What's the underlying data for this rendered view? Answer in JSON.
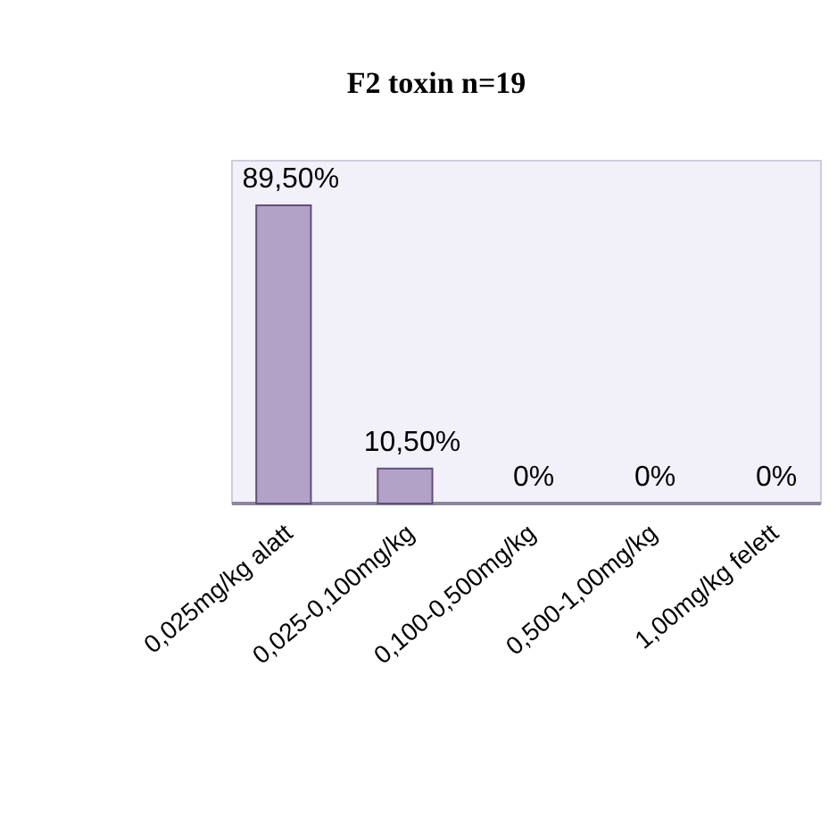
{
  "chart_data": {
    "type": "bar",
    "title": "F2 toxin n=19",
    "categories": [
      "0,025mg/kg alatt",
      "0,025-0,100mg/kg",
      "0,100-0,500mg/kg",
      "0,500-1,00mg/kg",
      "1,00mg/kg felett"
    ],
    "values": [
      89.5,
      10.5,
      0,
      0,
      0
    ],
    "color": "#b3a2c7",
    "value_labels": [
      "89,50%",
      "10,50%",
      "0%",
      "0%",
      "0%"
    ]
  }
}
